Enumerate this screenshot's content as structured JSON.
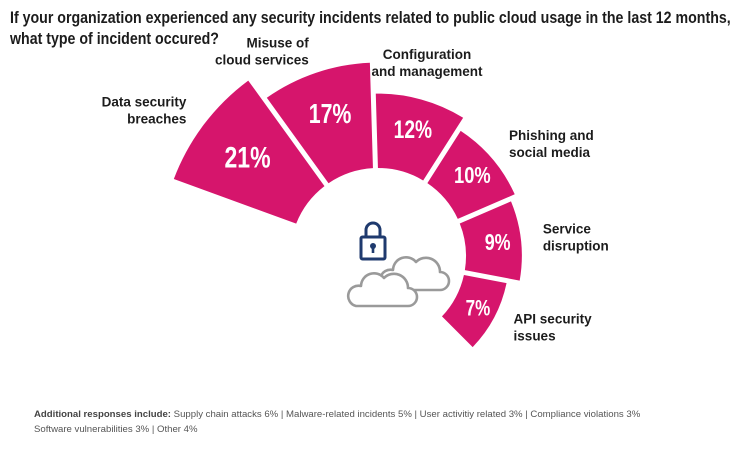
{
  "title_lines": [
    "If your organization experienced any security incidents related to public cloud usage in the last 12 months,",
    "what type of incident occured?"
  ],
  "chart_data": {
    "type": "pie",
    "variant": "semi-radial",
    "title": "If your organization experienced any security incidents related to public cloud usage in the last 12 months, what type of incident occured?",
    "unit": "%",
    "categories": [
      "Data security breaches",
      "Misuse of cloud services",
      "Configuration and management",
      "Phishing and social media",
      "Service disruption",
      "API security issues"
    ],
    "label_lines": [
      [
        "Data security",
        "breaches"
      ],
      [
        "Misuse of",
        "cloud services"
      ],
      [
        "Configuration",
        "and management"
      ],
      [
        "Phishing and",
        "social media"
      ],
      [
        "Service",
        "disruption"
      ],
      [
        "API security",
        "issues"
      ]
    ],
    "values": [
      21,
      17,
      12,
      10,
      9,
      7
    ],
    "value_labels": [
      "21%",
      "17%",
      "12%",
      "10%",
      "9%",
      "7%"
    ],
    "color": "#d6156c"
  },
  "footnote": {
    "lead": "Additional responses include:",
    "line1": "Supply chain attacks 6%  |  Malware-related incidents 5%  |  User activitiy related 3%  |  Compliance violations 3%",
    "line2": "Software vulnerabilities 3%  |  Other 4%"
  },
  "icons": [
    "lock-icon",
    "cloud-icon"
  ],
  "colors": {
    "accent": "#d6156c",
    "lock": "#1f3a6e",
    "cloud": "#9a9a9a"
  }
}
